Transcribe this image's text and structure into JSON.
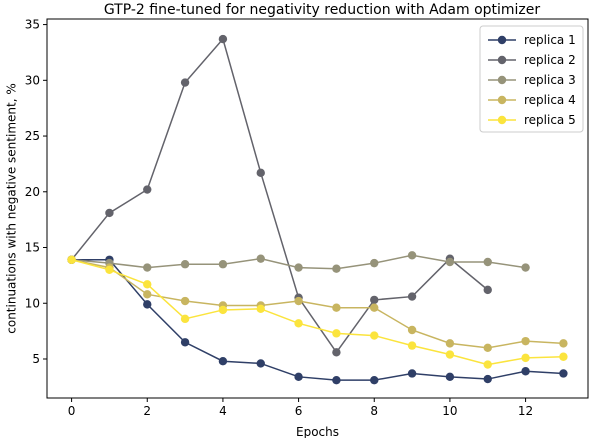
{
  "chart_data": {
    "type": "line",
    "title": "GTP-2 fine-tuned for negativity reduction with Adam optimizer",
    "xlabel": "Epochs",
    "ylabel": "continuations with negative sentiment, %",
    "xlim": [
      -0.65,
      13.65
    ],
    "ylim": [
      1.5,
      35.5
    ],
    "xticks": [
      0,
      2,
      4,
      6,
      8,
      10,
      12
    ],
    "yticks": [
      5,
      10,
      15,
      20,
      25,
      30,
      35
    ],
    "grid": false,
    "legend_position": "top-right",
    "series": [
      {
        "name": "replica 1",
        "color": "#2f3f67",
        "x": [
          0,
          1,
          2,
          3,
          4,
          5,
          6,
          7,
          8,
          9,
          10,
          11,
          12,
          13
        ],
        "y": [
          13.9,
          13.9,
          9.9,
          6.5,
          4.8,
          4.6,
          3.4,
          3.1,
          3.1,
          3.7,
          3.4,
          3.2,
          3.9,
          3.7
        ]
      },
      {
        "name": "replica 2",
        "color": "#63636b",
        "x": [
          0,
          1,
          2,
          3,
          4,
          5,
          6,
          7,
          8,
          9,
          10,
          11
        ],
        "y": [
          13.9,
          18.1,
          20.2,
          29.8,
          33.7,
          21.7,
          10.5,
          5.6,
          10.3,
          10.6,
          14.0,
          11.2
        ]
      },
      {
        "name": "replica 3",
        "color": "#96937a",
        "x": [
          0,
          1,
          2,
          3,
          4,
          5,
          6,
          7,
          8,
          9,
          10,
          11,
          12
        ],
        "y": [
          13.9,
          13.6,
          13.2,
          13.5,
          13.5,
          14.0,
          13.2,
          13.1,
          13.6,
          14.3,
          13.7,
          13.7,
          13.2
        ]
      },
      {
        "name": "replica 4",
        "color": "#c8b560",
        "x": [
          0,
          1,
          2,
          3,
          4,
          5,
          6,
          7,
          8,
          9,
          10,
          11,
          12,
          13
        ],
        "y": [
          13.9,
          13.2,
          10.8,
          10.2,
          9.8,
          9.8,
          10.2,
          9.6,
          9.6,
          7.6,
          6.4,
          6.0,
          6.6,
          6.4
        ]
      },
      {
        "name": "replica 5",
        "color": "#fbe43d",
        "x": [
          0,
          1,
          2,
          3,
          4,
          5,
          6,
          7,
          8,
          9,
          10,
          11,
          12,
          13
        ],
        "y": [
          13.9,
          13.0,
          11.7,
          8.6,
          9.4,
          9.5,
          8.2,
          7.3,
          7.1,
          6.2,
          5.4,
          4.5,
          5.1,
          5.2
        ]
      }
    ]
  }
}
